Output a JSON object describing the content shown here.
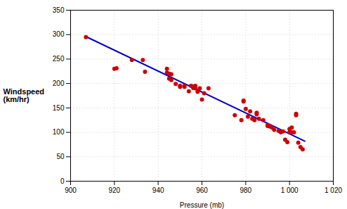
{
  "chart_data": {
    "type": "scatter",
    "xlabel": "Pressure (mb)",
    "ylabel": "Windspeed\n(km/hr)",
    "xlim": [
      900,
      1020
    ],
    "ylim": [
      0,
      350
    ],
    "xticks": [
      900,
      920,
      940,
      960,
      980,
      {
        "value": 1000,
        "label": "1 000"
      },
      {
        "value": 1020,
        "label": "1 020"
      }
    ],
    "yticks": [
      0,
      50,
      100,
      150,
      200,
      250,
      300,
      350
    ],
    "grid": true,
    "series": [
      {
        "type": "line",
        "color": "#0000cc",
        "x": [
          907,
          1007
        ],
        "values": [
          296,
          82
        ]
      },
      {
        "type": "scatter",
        "color": "#cc0000",
        "x": [
          907,
          920,
          921,
          928,
          933,
          934,
          944,
          944,
          945,
          945,
          946,
          946,
          948,
          950,
          950,
          952,
          952,
          954,
          955,
          956,
          956,
          957,
          957,
          958,
          959,
          960,
          961,
          963,
          975,
          978,
          979,
          979,
          980,
          981,
          982,
          983,
          984,
          985,
          985,
          986,
          988,
          990,
          990,
          991,
          992,
          993,
          995,
          996,
          997,
          998,
          999,
          1000,
          1000,
          1001,
          1001,
          1002,
          1003,
          1003,
          1004,
          1005,
          1006
        ],
        "values": [
          295,
          230,
          231,
          248,
          248,
          224,
          230,
          222,
          220,
          210,
          207,
          219,
          199,
          195,
          193,
          195,
          193,
          184,
          195,
          194,
          191,
          190,
          195,
          183,
          190,
          167,
          180,
          190,
          135,
          125,
          165,
          163,
          148,
          132,
          143,
          128,
          125,
          137,
          140,
          128,
          125,
          113,
          115,
          112,
          110,
          105,
          103,
          100,
          102,
          85,
          80,
          100,
          107,
          100,
          110,
          100,
          135,
          138,
          79,
          70,
          65
        ]
      }
    ]
  }
}
